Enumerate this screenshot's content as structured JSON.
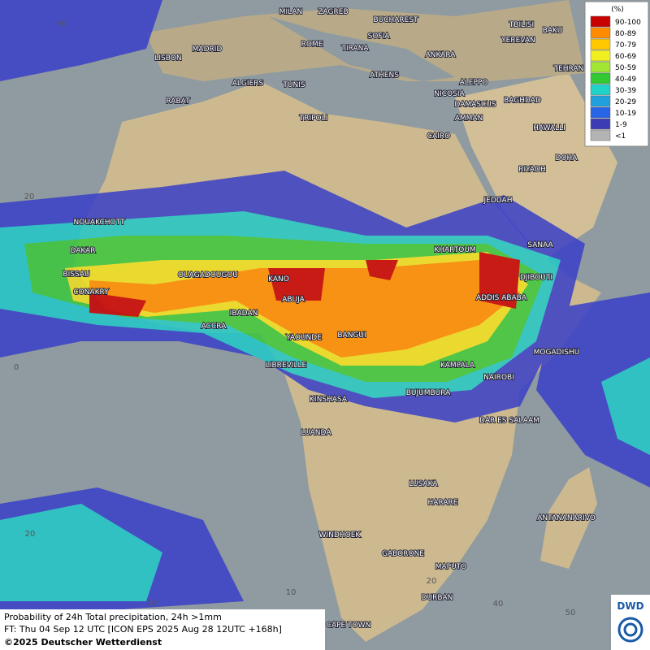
{
  "legend": {
    "unit": "(%)",
    "items": [
      {
        "label": "90-100",
        "color": "#c80000"
      },
      {
        "label": "80-89",
        "color": "#ff8c00"
      },
      {
        "label": "70-79",
        "color": "#ffc800"
      },
      {
        "label": "60-69",
        "color": "#f0f020"
      },
      {
        "label": "50-59",
        "color": "#a0e632"
      },
      {
        "label": "40-49",
        "color": "#32c832"
      },
      {
        "label": "30-39",
        "color": "#20d2c8"
      },
      {
        "label": "20-29",
        "color": "#20a0dc"
      },
      {
        "label": "10-19",
        "color": "#2864e6"
      },
      {
        "label": "1-9",
        "color": "#3c3cb4"
      },
      {
        "label": "<1",
        "color": "#b4b4b4"
      }
    ]
  },
  "cities": [
    "MILAN",
    "ZAGREB",
    "BUCHAREST",
    "TBILISI",
    "BAKU",
    "SOFIA",
    "YEREVAN",
    "MADRID",
    "ROME",
    "TIRANA",
    "ANKARA",
    "LISBON",
    "TEHRAN",
    "ATHENS",
    "ALGIERS",
    "TUNIS",
    "ALEPPO",
    "RABAT",
    "NICOSIA",
    "BAGHDAD",
    "DAMASCUS",
    "AMMAN",
    "TRIPOLI",
    "HAWALLI",
    "CAIRO",
    "DOHA",
    "RIYADH",
    "JEDDAH",
    "NOUAKCHOTT",
    "SANAA",
    "DAKAR",
    "KHARTOUM",
    "BISSAU",
    "OUAGADOUGOU",
    "KANO",
    "DJIBOUTI",
    "CONAKRY",
    "ABUJA",
    "ADDIS ABABA",
    "IBADAN",
    "ACCRA",
    "YAOUNDE",
    "BANGUI",
    "MOGADISHU",
    "LIBREVILLE",
    "KAMPALA",
    "NAIROBI",
    "KINSHASA",
    "BUJUMBURA",
    "DAR ES SALAAM",
    "LUANDA",
    "LUSAKA",
    "HARARE",
    "ANTANANARIVO",
    "WINDHOEK",
    "GABORONE",
    "MAPUTO",
    "DURBAN",
    "CAPE TOWN"
  ],
  "grid_labels": [
    "40",
    "20",
    "0",
    "20",
    "10",
    "10",
    "20",
    "40",
    "50"
  ],
  "caption": [
    "Probability of 24h Total precipitation, 24h >1mm",
    "FT: Thu 04 Sep 12 UTC [ICON EPS 2025 Aug 28 12UTC +168h]",
    "©2025 Deutscher Wetterdienst"
  ],
  "logo": "DWD"
}
